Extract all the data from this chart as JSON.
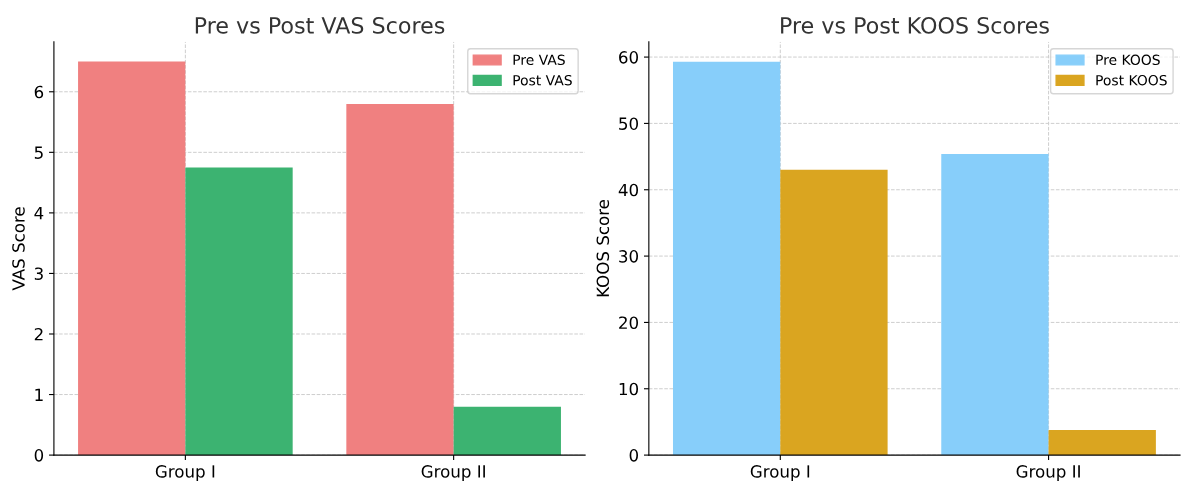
{
  "chart_data": [
    {
      "type": "bar",
      "title": "Pre vs Post VAS Scores",
      "ylabel": "VAS Score",
      "categories": [
        "Group I",
        "Group II"
      ],
      "series": [
        {
          "name": "Pre VAS",
          "color": "#f08080",
          "values": [
            6.5,
            5.8
          ]
        },
        {
          "name": "Post VAS",
          "color": "#3cb371",
          "values": [
            4.75,
            0.8
          ]
        }
      ],
      "ylim": [
        0,
        6.825
      ],
      "yticks": [
        0,
        1,
        2,
        3,
        4,
        5,
        6
      ],
      "grid": true,
      "legend": "top right"
    },
    {
      "type": "bar",
      "title": "Pre vs Post KOOS Scores",
      "ylabel": "KOOS Score",
      "categories": [
        "Group I",
        "Group II"
      ],
      "series": [
        {
          "name": "Pre KOOS",
          "color": "#87cefa",
          "values": [
            59.3,
            45.4
          ]
        },
        {
          "name": "Post KOOS",
          "color": "#daa520",
          "values": [
            43.0,
            3.8
          ]
        }
      ],
      "ylim": [
        0,
        62.3
      ],
      "yticks": [
        0,
        10,
        20,
        30,
        40,
        50,
        60
      ],
      "grid": true,
      "legend": "top right"
    }
  ]
}
